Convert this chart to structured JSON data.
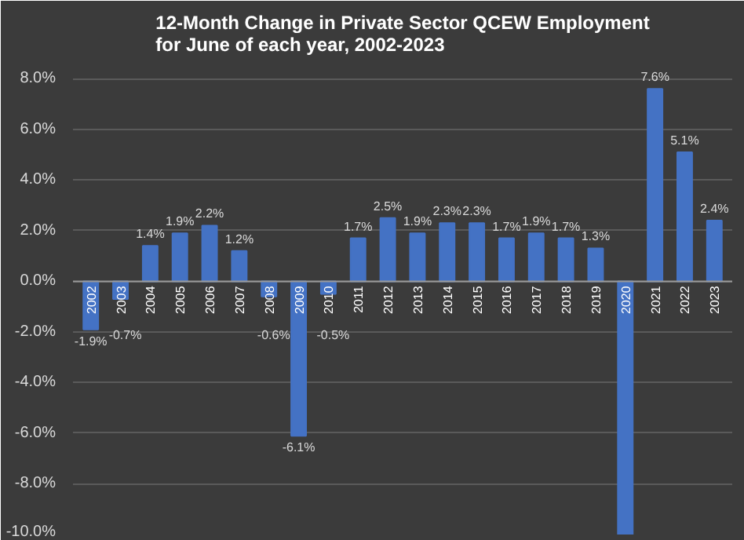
{
  "chart_data": {
    "type": "bar",
    "title": "12-Month Change in Private Sector QCEW Employment\nfor June of each year, 2002-2023",
    "categories": [
      "2002",
      "2003",
      "2004",
      "2005",
      "2006",
      "2007",
      "2008",
      "2009",
      "2010",
      "2011",
      "2012",
      "2013",
      "2014",
      "2015",
      "2016",
      "2017",
      "2018",
      "2019",
      "2020",
      "2021",
      "2022",
      "2023"
    ],
    "values": [
      -1.9,
      -0.7,
      1.4,
      1.9,
      2.2,
      1.2,
      -0.6,
      -6.1,
      -0.5,
      1.7,
      2.5,
      1.9,
      2.3,
      2.3,
      1.7,
      1.9,
      1.7,
      1.3,
      -10.0,
      7.6,
      5.1,
      2.4
    ],
    "value_labels": [
      "-1.9%",
      "-0.7%",
      "1.4%",
      "1.9%",
      "2.2%",
      "1.2%",
      "-0.6%",
      "-6.1%",
      "-0.5%",
      "1.7%",
      "2.5%",
      "1.9%",
      "2.3%",
      "2.3%",
      "1.7%",
      "1.9%",
      "1.7%",
      "1.3%",
      null,
      "7.6%",
      "5.1%",
      "2.4%"
    ],
    "color": "#4472c4",
    "ylim": [
      -10,
      8.6
    ],
    "yticks": [
      {
        "value": -10,
        "label": "-10.0%"
      },
      {
        "value": -8,
        "label": "-8.0%"
      },
      {
        "value": -6,
        "label": "-6.0%"
      },
      {
        "value": -4,
        "label": "-4.0%"
      },
      {
        "value": -2,
        "label": "-2.0%"
      },
      {
        "value": 0,
        "label": "0.0%"
      },
      {
        "value": 2,
        "label": "2.0%"
      },
      {
        "value": 4,
        "label": "4.0%"
      },
      {
        "value": 6,
        "label": "6.0%"
      },
      {
        "value": 8,
        "label": "8.0%"
      }
    ],
    "grid": "y"
  }
}
